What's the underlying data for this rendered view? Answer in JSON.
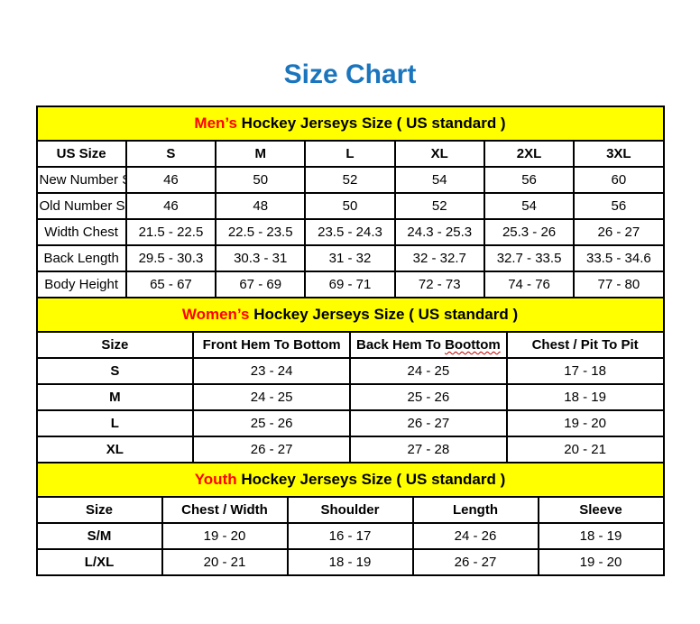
{
  "title": {
    "text": "Size Chart"
  },
  "colors": {
    "title_blue": "#1B75BD",
    "header_yellow": "#FFFF00",
    "highlight_red": "#FF0000",
    "squiggle_red": "#C00000",
    "border_black": "#000000"
  },
  "tables": [
    {
      "id": "mens",
      "header": {
        "highlight": "Men’s",
        "rest": " Hockey Jerseys Size ( US standard )"
      },
      "columns": [
        "US Size",
        "S",
        "M",
        "L",
        "XL",
        "2XL",
        "3XL"
      ],
      "rows": [
        {
          "label": "New Number Size",
          "values": [
            "46",
            "50",
            "52",
            "54",
            "56",
            "60"
          ]
        },
        {
          "label": "Old Number Size",
          "values": [
            "46",
            "48",
            "50",
            "52",
            "54",
            "56"
          ]
        },
        {
          "label": "Width Chest",
          "values": [
            "21.5 - 22.5",
            "22.5 - 23.5",
            "23.5 - 24.3",
            "24.3 - 25.3",
            "25.3 - 26",
            "26 - 27"
          ]
        },
        {
          "label": "Back Length",
          "values": [
            "29.5 - 30.3",
            "30.3 - 31",
            "31 - 32",
            "32 - 32.7",
            "32.7 - 33.5",
            "33.5 - 34.6"
          ]
        },
        {
          "label": "Body Height",
          "values": [
            "65 - 67",
            "67 - 69",
            "69 - 71",
            "72 - 73",
            "74 - 76",
            "77 - 80"
          ]
        }
      ]
    },
    {
      "id": "womens",
      "header": {
        "highlight": "Women’s",
        "rest": " Hockey Jerseys Size ( US standard )"
      },
      "columns": [
        "Size",
        "Front Hem To Bottom",
        "Back Hem To Boottom",
        "Chest / Pit To Pit"
      ],
      "squiggle": {
        "column": 2,
        "word": "Boottom"
      },
      "rows": [
        {
          "label": "S",
          "values": [
            "23 - 24",
            "24 - 25",
            "17 - 18"
          ]
        },
        {
          "label": "M",
          "values": [
            "24 - 25",
            "25 - 26",
            "18 - 19"
          ]
        },
        {
          "label": "L",
          "values": [
            "25 - 26",
            "26 - 27",
            "19 - 20"
          ]
        },
        {
          "label": "XL",
          "values": [
            "26 - 27",
            "27 - 28",
            "20 - 21"
          ]
        }
      ]
    },
    {
      "id": "youth",
      "header": {
        "highlight": "Youth",
        "rest": " Hockey Jerseys Size ( US standard )"
      },
      "columns": [
        "Size",
        "Chest / Width",
        "Shoulder",
        "Length",
        "Sleeve"
      ],
      "rows": [
        {
          "label": "S/M",
          "values": [
            "19 - 20",
            "16 - 17",
            "24 - 26",
            "18 - 19"
          ]
        },
        {
          "label": "L/XL",
          "values": [
            "20 - 21",
            "18 - 19",
            "26 - 27",
            "19 - 20"
          ]
        }
      ]
    }
  ]
}
